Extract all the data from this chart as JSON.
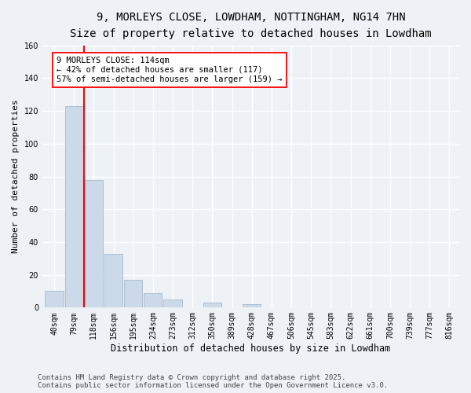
{
  "title": "9, MORLEYS CLOSE, LOWDHAM, NOTTINGHAM, NG14 7HN",
  "subtitle": "Size of property relative to detached houses in Lowdham",
  "xlabel": "Distribution of detached houses by size in Lowdham",
  "ylabel": "Number of detached properties",
  "categories": [
    "40sqm",
    "79sqm",
    "118sqm",
    "156sqm",
    "195sqm",
    "234sqm",
    "273sqm",
    "312sqm",
    "350sqm",
    "389sqm",
    "428sqm",
    "467sqm",
    "506sqm",
    "545sqm",
    "583sqm",
    "622sqm",
    "661sqm",
    "700sqm",
    "739sqm",
    "777sqm",
    "816sqm"
  ],
  "values": [
    10,
    123,
    78,
    33,
    17,
    9,
    5,
    0,
    3,
    0,
    2,
    0,
    0,
    0,
    0,
    0,
    0,
    0,
    0,
    0,
    0
  ],
  "bar_color": "#ccd9e8",
  "bar_edge_color": "#9ab0c8",
  "vline_x": 1.5,
  "vline_color": "red",
  "annotation_text": "9 MORLEYS CLOSE: 114sqm\n← 42% of detached houses are smaller (117)\n57% of semi-detached houses are larger (159) →",
  "annotation_box_color": "white",
  "annotation_box_edge": "red",
  "ylim": [
    0,
    160
  ],
  "yticks": [
    0,
    20,
    40,
    60,
    80,
    100,
    120,
    140,
    160
  ],
  "background_color": "#eef2f7",
  "grid_color": "white",
  "footer_line1": "Contains HM Land Registry data © Crown copyright and database right 2025.",
  "footer_line2": "Contains public sector information licensed under the Open Government Licence v3.0.",
  "title_fontsize": 10,
  "subtitle_fontsize": 9,
  "xlabel_fontsize": 8.5,
  "ylabel_fontsize": 8,
  "tick_fontsize": 7,
  "footer_fontsize": 6.5,
  "annotation_fontsize": 7.5
}
